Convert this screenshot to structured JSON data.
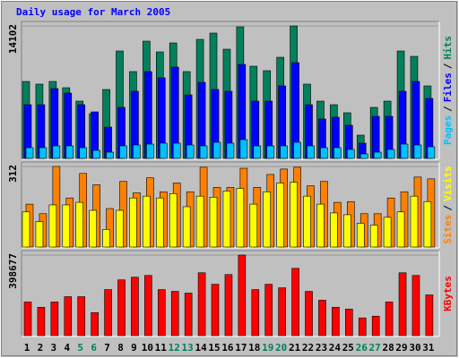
{
  "chart_data": {
    "type": "bar",
    "title": "Daily usage for March 2005",
    "categories": [
      1,
      2,
      3,
      4,
      5,
      6,
      7,
      8,
      9,
      10,
      11,
      12,
      13,
      14,
      15,
      16,
      17,
      18,
      19,
      20,
      21,
      22,
      23,
      24,
      25,
      26,
      27,
      28,
      29,
      30,
      31
    ],
    "category_colors": [
      "#000000",
      "#000000",
      "#000000",
      "#000000",
      "#00805c",
      "#00805c",
      "#000000",
      "#000000",
      "#000000",
      "#000000",
      "#000000",
      "#00805c",
      "#00805c",
      "#000000",
      "#000000",
      "#000000",
      "#000000",
      "#000000",
      "#00805c",
      "#00805c",
      "#000000",
      "#000000",
      "#000000",
      "#000000",
      "#000000",
      "#00805c",
      "#00805c",
      "#000000",
      "#000000",
      "#000000",
      "#000000"
    ],
    "legend_separator": "/",
    "panels": [
      {
        "ylim": [
          0,
          14102
        ],
        "yticks": [
          14102
        ],
        "series": [
          {
            "name": "Hits",
            "color": "#00805c",
            "values": [
              8194,
              7909,
              8194,
              7527,
              6098,
              4764,
              7337,
              11434,
              9243,
              12482,
              11339,
              12292,
              9243,
              12673,
              13340,
              11625,
              14007,
              9814,
              9338,
              10767,
              14102,
              7909,
              6098,
              5717,
              4860,
              2477,
              5431,
              6098,
              11434,
              10862,
              7718
            ]
          },
          {
            "name": "Files",
            "color": "#0000ff",
            "values": [
              5717,
              5717,
              7432,
              6956,
              5717,
              4955,
              3335,
              5431,
              7146,
              9243,
              8576,
              9719,
              6765,
              8099,
              7337,
              7146,
              10005,
              6098,
              6098,
              7718,
              10195,
              5717,
              4193,
              4383,
              3526,
              1620,
              4478,
              4478,
              7146,
              8194,
              6384
            ]
          },
          {
            "name": "Pages",
            "color": "#00c0ff",
            "values": [
              1143,
              1143,
              1334,
              1334,
              1143,
              858,
              667,
              1334,
              1429,
              1525,
              1620,
              1620,
              1429,
              1334,
              1715,
              1620,
              2001,
              1334,
              1334,
              1334,
              1715,
              1334,
              1143,
              1143,
              953,
              476,
              667,
              953,
              1525,
              1429,
              1239
            ]
          }
        ]
      },
      {
        "ylim": [
          0,
          312
        ],
        "yticks": [
          312
        ],
        "series": [
          {
            "name": "Sites",
            "color": "#ff8000",
            "values": [
              166,
              129,
              312,
              190,
              285,
              241,
              149,
              254,
              210,
              268,
              214,
              248,
              214,
              309,
              231,
              231,
              305,
              231,
              281,
              302,
              309,
              237,
              254,
              173,
              176,
              129,
              129,
              190,
              214,
              271,
              264
            ]
          },
          {
            "name": "Visits",
            "color": "#ffff00",
            "values": [
              136,
              98,
              163,
              163,
              173,
              142,
              68,
              142,
              190,
              197,
              190,
              207,
              156,
              197,
              193,
              217,
              227,
              166,
              214,
              248,
              251,
              197,
              166,
              132,
              125,
              92,
              85,
              115,
              136,
              197,
              176
            ]
          }
        ]
      },
      {
        "ylim": [
          0,
          398677
        ],
        "yticks": [
          398677
        ],
        "series": [
          {
            "name": "KBytes",
            "color": "#ff0000",
            "values": [
              166480,
              140194,
              166480,
              192765,
              192765,
              113908,
              227813,
              276009,
              289152,
              297914,
              227813,
              219051,
              210292,
              311057,
              254102,
              302295,
              398677,
              227813,
              254102,
              236574,
              332961,
              219051,
              175243,
              140194,
              131432,
              87621,
              96383,
              166480,
              311057,
              297914,
              201528
            ]
          }
        ]
      }
    ]
  }
}
